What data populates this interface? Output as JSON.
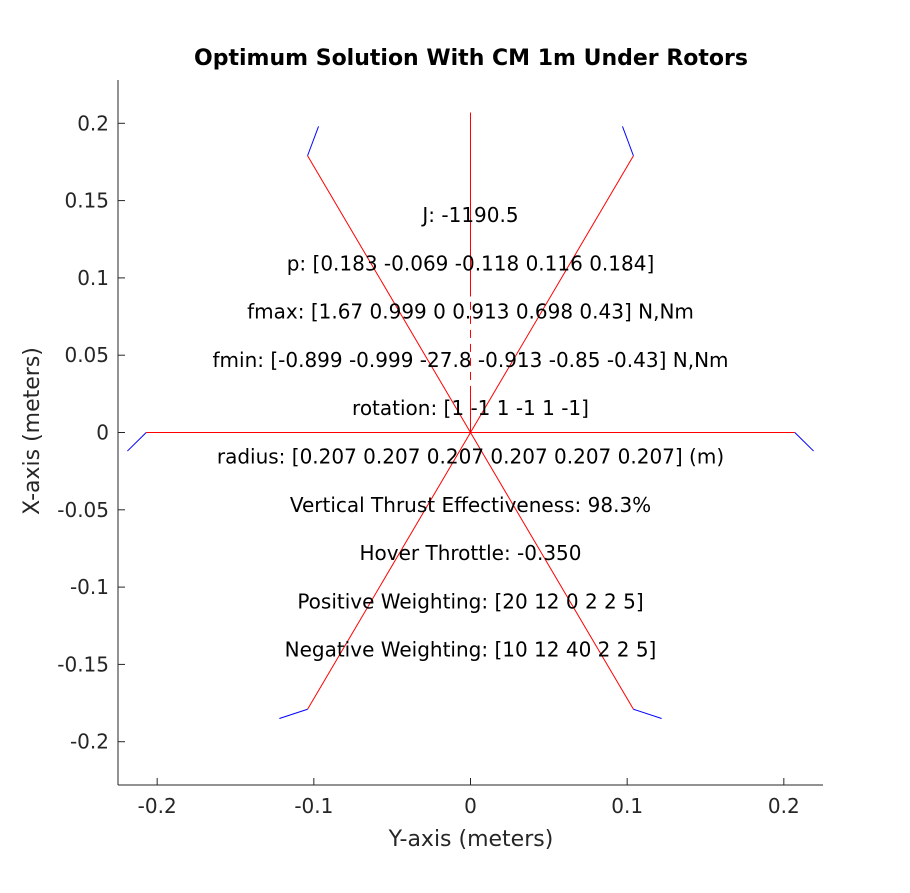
{
  "chart_data": {
    "type": "line",
    "title": "Optimum Solution With CM 1m Under Rotors",
    "xlabel": "Y-axis (meters)",
    "ylabel": "X-axis (meters)",
    "xlim": [
      -0.225,
      0.225
    ],
    "ylim": [
      -0.228,
      0.228
    ],
    "xticks": [
      -0.2,
      -0.1,
      0,
      0.1,
      0.2
    ],
    "xtick_labels": [
      "-0.2",
      "-0.1",
      "0",
      "0.1",
      "0.2"
    ],
    "yticks": [
      0.2,
      0.15,
      0.1,
      0.05,
      0,
      -0.05,
      -0.1,
      -0.15,
      -0.2
    ],
    "ytick_labels": [
      "0.2",
      "0.15",
      "0.1",
      "0.05",
      "0",
      "-0.05",
      "-0.1",
      "-0.15",
      "-0.2"
    ],
    "grid": false,
    "axes_box": "left-bottom only",
    "colors": {
      "arm": "#ff0000",
      "heading": "#ff0000",
      "rotor": "#0000ff",
      "axis": "#262626"
    },
    "series": [
      {
        "kind": "arm",
        "x": [
          0,
          0.104
        ],
        "y": [
          0,
          0.179
        ]
      },
      {
        "kind": "arm",
        "x": [
          0,
          -0.104
        ],
        "y": [
          0,
          0.179
        ]
      },
      {
        "kind": "arm",
        "x": [
          0,
          0.207
        ],
        "y": [
          0,
          0
        ]
      },
      {
        "kind": "arm",
        "x": [
          0,
          -0.207
        ],
        "y": [
          0,
          0
        ]
      },
      {
        "kind": "arm",
        "x": [
          0,
          0.104
        ],
        "y": [
          0,
          -0.179
        ]
      },
      {
        "kind": "arm",
        "x": [
          0,
          -0.104
        ],
        "y": [
          0,
          -0.179
        ]
      },
      {
        "kind": "heading",
        "x": [
          0,
          0
        ],
        "y": [
          0,
          0.207
        ],
        "dashed_range": [
          0.025,
          0.088
        ]
      },
      {
        "kind": "rotor",
        "x": [
          0.104,
          0.097
        ],
        "y": [
          0.179,
          0.198
        ]
      },
      {
        "kind": "rotor",
        "x": [
          -0.104,
          -0.097
        ],
        "y": [
          0.179,
          0.198
        ]
      },
      {
        "kind": "rotor",
        "x": [
          0.207,
          0.219
        ],
        "y": [
          0,
          -0.012
        ]
      },
      {
        "kind": "rotor",
        "x": [
          -0.207,
          -0.219
        ],
        "y": [
          0,
          -0.012
        ]
      },
      {
        "kind": "rotor",
        "x": [
          0.104,
          0.122
        ],
        "y": [
          -0.179,
          -0.185
        ]
      },
      {
        "kind": "rotor",
        "x": [
          -0.104,
          -0.122
        ],
        "y": [
          -0.179,
          -0.185
        ]
      }
    ],
    "annotations": [
      "J: -1190.5",
      "p: [0.183 -0.069 -0.118 0.116 0.184]",
      "fmax: [1.67 0.999 0 0.913 0.698 0.43] N,Nm",
      "fmin: [-0.899 -0.999 -27.8 -0.913 -0.85 -0.43] N,Nm",
      "rotation: [1 -1 1 -1 1 -1]",
      "radius: [0.207 0.207 0.207 0.207 0.207 0.207] (m)",
      "Vertical Thrust Effectiveness: 98.3%",
      "Hover Throttle: -0.350",
      "Positive Weighting: [20 12 0 2 2 5]",
      "Negative Weighting: [10 12 40 2 2 5]"
    ]
  }
}
